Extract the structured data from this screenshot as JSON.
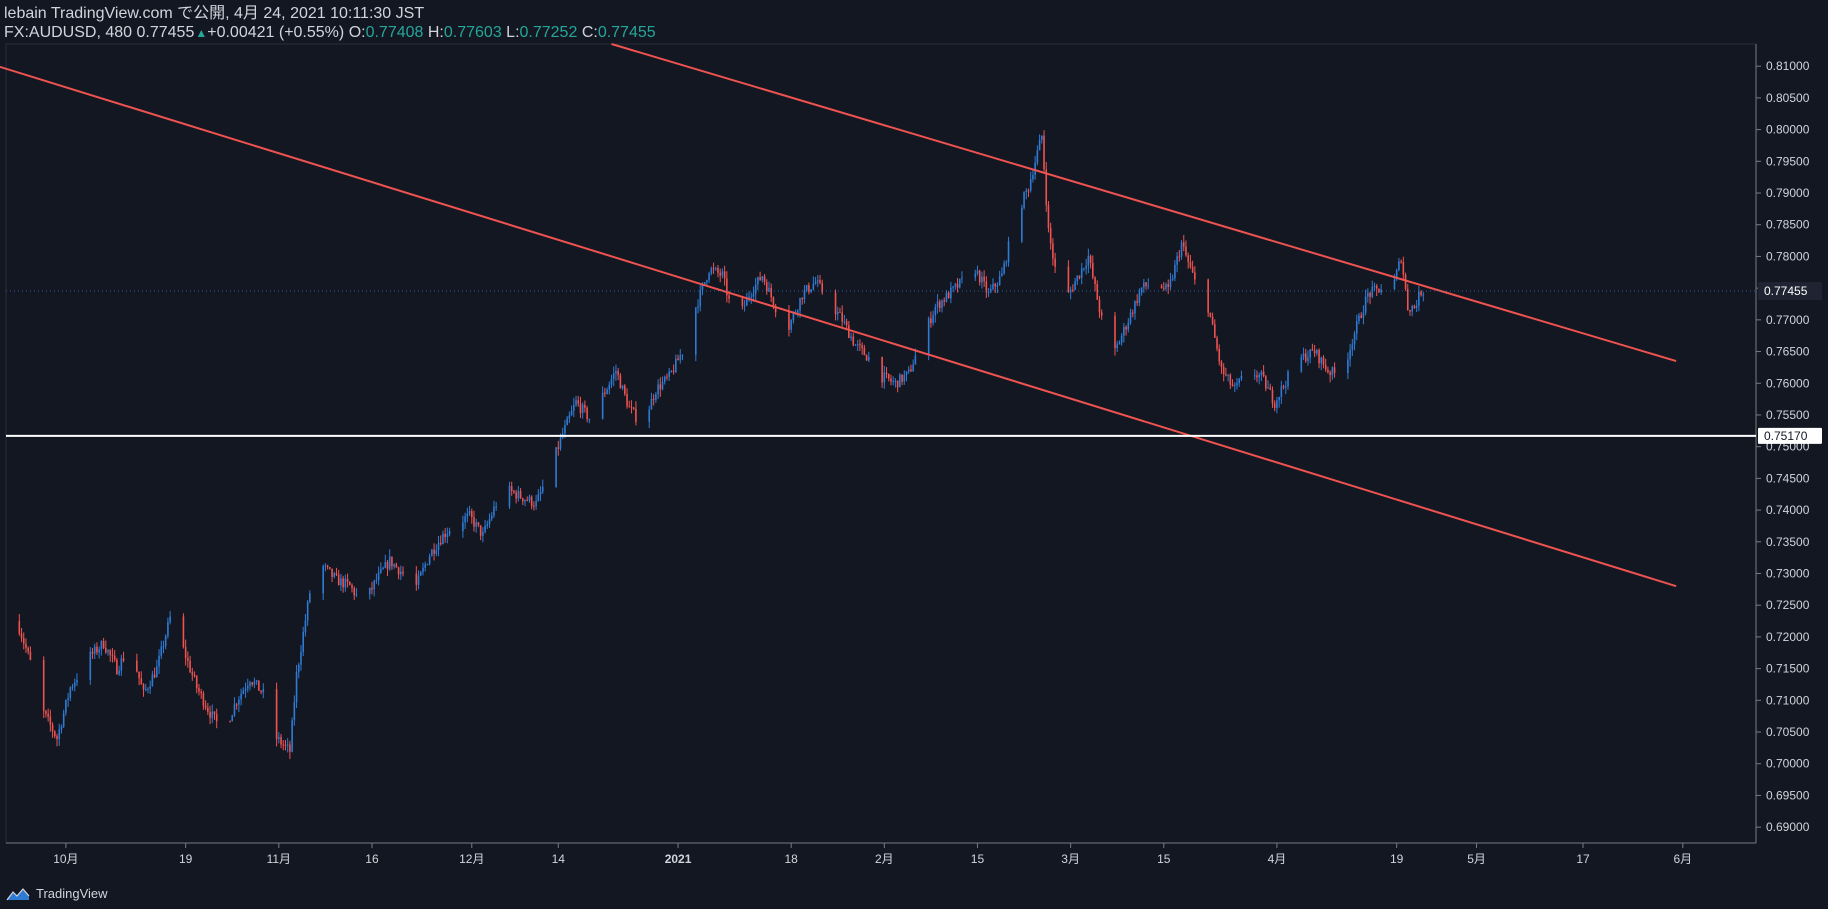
{
  "header": {
    "line1": "lebain TradingView.com で公開, 4月 24, 2021 10:11:30 JST",
    "symbol": "FX:AUDUSD, 480",
    "last_price": "0.77455",
    "change": "+0.00421 (+0.55%)",
    "open_label": "O:",
    "open_value": "0.77408",
    "high_label": "H:",
    "high_value": "0.77603",
    "low_label": "L:",
    "low_value": "0.77252",
    "close_label": "C:",
    "close_value": "0.77455"
  },
  "footer": {
    "brand": "TradingView",
    "logo_icon": "tradingview-logo-icon"
  },
  "colors": {
    "background": "#131722",
    "up": "#2f7bd4",
    "down": "#ef5350",
    "trendline": "#ef5350",
    "hline": "#ffffff",
    "axis_text": "#d1d4dc",
    "last_price_label_bg": "#1e2431"
  },
  "chart_data": {
    "type": "candlestick",
    "title": "",
    "symbol": "FX:AUDUSD",
    "timeframe": "480",
    "ylim": [
      0.6875,
      0.8135
    ],
    "y_ticks": [
      "0.81000",
      "0.80500",
      "0.80000",
      "0.79500",
      "0.79000",
      "0.78500",
      "0.78000",
      "0.77500",
      "0.77000",
      "0.76500",
      "0.76000",
      "0.75500",
      "0.75000",
      "0.74500",
      "0.74000",
      "0.73500",
      "0.73000",
      "0.72500",
      "0.72000",
      "0.71500",
      "0.71000",
      "0.70500",
      "0.70000",
      "0.69500",
      "0.69000"
    ],
    "x_ticks": [
      {
        "label": "10月",
        "date": "2020-10-01"
      },
      {
        "label": "19",
        "date": "2020-10-19"
      },
      {
        "label": "11月",
        "date": "2020-11-02"
      },
      {
        "label": "16",
        "date": "2020-11-16"
      },
      {
        "label": "12月",
        "date": "2020-12-01"
      },
      {
        "label": "14",
        "date": "2020-12-14"
      },
      {
        "label": "2021",
        "date": "2021-01-01"
      },
      {
        "label": "18",
        "date": "2021-01-18"
      },
      {
        "label": "2月",
        "date": "2021-02-01"
      },
      {
        "label": "15",
        "date": "2021-02-15"
      },
      {
        "label": "3月",
        "date": "2021-03-01"
      },
      {
        "label": "15",
        "date": "2021-03-15"
      },
      {
        "label": "4月",
        "date": "2021-04-01"
      },
      {
        "label": "19",
        "date": "2021-04-19"
      },
      {
        "label": "5月",
        "date": "2021-05-01"
      },
      {
        "label": "17",
        "date": "2021-05-17"
      },
      {
        "label": "6月",
        "date": "2021-06-01"
      }
    ],
    "last_price": {
      "value": 0.77455,
      "label": "0.77455"
    },
    "horizontal_line": {
      "value": 0.7517,
      "label": "0.75170"
    },
    "trendlines": [
      {
        "name": "upper channel",
        "p1": {
          "date": "2020-12-22",
          "price": 0.8135
        },
        "p2": {
          "date": "2021-05-31",
          "price": 0.7635
        }
      },
      {
        "name": "lower channel",
        "p1": {
          "date": "2020-09-10",
          "price": 0.8135
        },
        "p2": {
          "date": "2021-05-31",
          "price": 0.728
        }
      }
    ],
    "price_path": [
      {
        "date": "2020-09-24",
        "price": 0.7225
      },
      {
        "date": "2020-09-26",
        "price": 0.716
      },
      {
        "date": "2020-09-28",
        "price": 0.708
      },
      {
        "date": "2020-09-30",
        "price": 0.704
      },
      {
        "date": "2020-10-02",
        "price": 0.712
      },
      {
        "date": "2020-10-05",
        "price": 0.717
      },
      {
        "date": "2020-10-07",
        "price": 0.719
      },
      {
        "date": "2020-10-09",
        "price": 0.715
      },
      {
        "date": "2020-10-11",
        "price": 0.7185
      },
      {
        "date": "2020-10-13",
        "price": 0.711
      },
      {
        "date": "2020-10-15",
        "price": 0.715
      },
      {
        "date": "2020-10-17",
        "price": 0.723
      },
      {
        "date": "2020-10-19",
        "price": 0.718
      },
      {
        "date": "2020-10-21",
        "price": 0.712
      },
      {
        "date": "2020-10-23",
        "price": 0.708
      },
      {
        "date": "2020-10-25",
        "price": 0.705
      },
      {
        "date": "2020-10-27",
        "price": 0.71
      },
      {
        "date": "2020-10-29",
        "price": 0.7135
      },
      {
        "date": "2020-10-31",
        "price": 0.711
      },
      {
        "date": "2020-11-02",
        "price": 0.704
      },
      {
        "date": "2020-11-04",
        "price": 0.702
      },
      {
        "date": "2020-11-05",
        "price": 0.714
      },
      {
        "date": "2020-11-07",
        "price": 0.727
      },
      {
        "date": "2020-11-09",
        "price": 0.731
      },
      {
        "date": "2020-11-11",
        "price": 0.729
      },
      {
        "date": "2020-11-13",
        "price": 0.728
      },
      {
        "date": "2020-11-15",
        "price": 0.725
      },
      {
        "date": "2020-11-17",
        "price": 0.729
      },
      {
        "date": "2020-11-19",
        "price": 0.732
      },
      {
        "date": "2020-11-21",
        "price": 0.73
      },
      {
        "date": "2020-11-23",
        "price": 0.728
      },
      {
        "date": "2020-11-25",
        "price": 0.733
      },
      {
        "date": "2020-11-27",
        "price": 0.736
      },
      {
        "date": "2020-11-29",
        "price": 0.738
      },
      {
        "date": "2020-12-01",
        "price": 0.739
      },
      {
        "date": "2020-12-03",
        "price": 0.736
      },
      {
        "date": "2020-12-05",
        "price": 0.741
      },
      {
        "date": "2020-12-07",
        "price": 0.743
      },
      {
        "date": "2020-12-09",
        "price": 0.742
      },
      {
        "date": "2020-12-11",
        "price": 0.741
      },
      {
        "date": "2020-12-13",
        "price": 0.746
      },
      {
        "date": "2020-12-15",
        "price": 0.752
      },
      {
        "date": "2020-12-17",
        "price": 0.757
      },
      {
        "date": "2020-12-19",
        "price": 0.7545
      },
      {
        "date": "2020-12-21",
        "price": 0.758
      },
      {
        "date": "2020-12-23",
        "price": 0.762
      },
      {
        "date": "2020-12-25",
        "price": 0.756
      },
      {
        "date": "2020-12-27",
        "price": 0.7535
      },
      {
        "date": "2020-12-29",
        "price": 0.759
      },
      {
        "date": "2020-12-31",
        "price": 0.761
      },
      {
        "date": "2021-01-02",
        "price": 0.765
      },
      {
        "date": "2021-01-04",
        "price": 0.772
      },
      {
        "date": "2021-01-06",
        "price": 0.778
      },
      {
        "date": "2021-01-08",
        "price": 0.777
      },
      {
        "date": "2021-01-10",
        "price": 0.769
      },
      {
        "date": "2021-01-12",
        "price": 0.774
      },
      {
        "date": "2021-01-14",
        "price": 0.777
      },
      {
        "date": "2021-01-16",
        "price": 0.772
      },
      {
        "date": "2021-01-18",
        "price": 0.769
      },
      {
        "date": "2021-01-20",
        "price": 0.774
      },
      {
        "date": "2021-01-22",
        "price": 0.776
      },
      {
        "date": "2021-01-24",
        "price": 0.773
      },
      {
        "date": "2021-01-26",
        "price": 0.77
      },
      {
        "date": "2021-01-28",
        "price": 0.766
      },
      {
        "date": "2021-01-30",
        "price": 0.764
      },
      {
        "date": "2021-02-01",
        "price": 0.761
      },
      {
        "date": "2021-02-03",
        "price": 0.76
      },
      {
        "date": "2021-02-05",
        "price": 0.7615
      },
      {
        "date": "2021-02-07",
        "price": 0.767
      },
      {
        "date": "2021-02-09",
        "price": 0.772
      },
      {
        "date": "2021-02-11",
        "price": 0.774
      },
      {
        "date": "2021-02-13",
        "price": 0.776
      },
      {
        "date": "2021-02-15",
        "price": 0.778
      },
      {
        "date": "2021-02-17",
        "price": 0.774
      },
      {
        "date": "2021-02-19",
        "price": 0.777
      },
      {
        "date": "2021-02-21",
        "price": 0.786
      },
      {
        "date": "2021-02-23",
        "price": 0.791
      },
      {
        "date": "2021-02-25",
        "price": 0.799
      },
      {
        "date": "2021-02-26",
        "price": 0.784
      },
      {
        "date": "2021-02-28",
        "price": 0.772
      },
      {
        "date": "2021-03-02",
        "price": 0.776
      },
      {
        "date": "2021-03-04",
        "price": 0.78
      },
      {
        "date": "2021-03-06",
        "price": 0.77
      },
      {
        "date": "2021-03-08",
        "price": 0.765
      },
      {
        "date": "2021-03-10",
        "price": 0.77
      },
      {
        "date": "2021-03-12",
        "price": 0.775
      },
      {
        "date": "2021-03-14",
        "price": 0.776
      },
      {
        "date": "2021-03-16",
        "price": 0.7745
      },
      {
        "date": "2021-03-18",
        "price": 0.782
      },
      {
        "date": "2021-03-20",
        "price": 0.776
      },
      {
        "date": "2021-03-22",
        "price": 0.772
      },
      {
        "date": "2021-03-24",
        "price": 0.762
      },
      {
        "date": "2021-03-26",
        "price": 0.759
      },
      {
        "date": "2021-03-28",
        "price": 0.762
      },
      {
        "date": "2021-03-30",
        "price": 0.761
      },
      {
        "date": "2021-04-01",
        "price": 0.757
      },
      {
        "date": "2021-04-03",
        "price": 0.761
      },
      {
        "date": "2021-04-05",
        "price": 0.764
      },
      {
        "date": "2021-04-07",
        "price": 0.765
      },
      {
        "date": "2021-04-09",
        "price": 0.762
      },
      {
        "date": "2021-04-11",
        "price": 0.761
      },
      {
        "date": "2021-04-13",
        "price": 0.768
      },
      {
        "date": "2021-04-15",
        "price": 0.774
      },
      {
        "date": "2021-04-17",
        "price": 0.775
      },
      {
        "date": "2021-04-19",
        "price": 0.776
      },
      {
        "date": "2021-04-20",
        "price": 0.78
      },
      {
        "date": "2021-04-21",
        "price": 0.772
      },
      {
        "date": "2021-04-22",
        "price": 0.772
      },
      {
        "date": "2021-04-23",
        "price": 0.7745
      }
    ]
  }
}
